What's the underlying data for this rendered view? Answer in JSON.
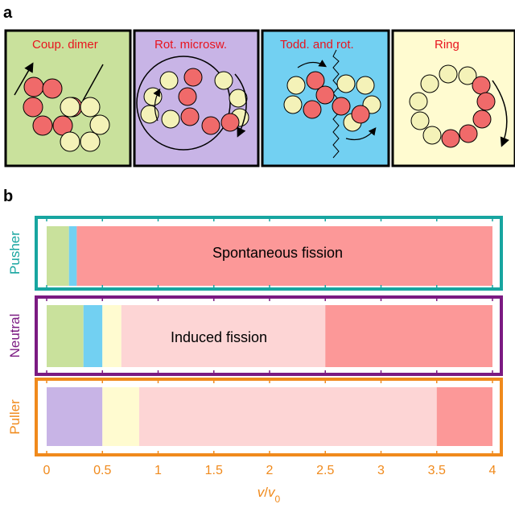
{
  "panel_a": {
    "letter": "a",
    "panels": [
      {
        "title": "Coup. dimer",
        "bg": "#c9e19c"
      },
      {
        "title": "Rot. microsw.",
        "bg": "#c8b4e6"
      },
      {
        "title": "Todd. and rot.",
        "bg": "#72d0f2"
      },
      {
        "title": "Ring",
        "bg": "#fffbd0"
      }
    ]
  },
  "panel_b": {
    "letter": "b",
    "rows": [
      {
        "label": "Pusher",
        "color": "#17a5a0",
        "region_text": "Spontaneous fission"
      },
      {
        "label": "Neutral",
        "color": "#7b1a82",
        "region_text": "Induced fission"
      },
      {
        "label": "Puller",
        "color": "#f08a1c",
        "region_text": ""
      }
    ]
  },
  "chart_data": {
    "type": "bar",
    "orientation": "horizontal-stacked",
    "xlim": [
      0,
      4
    ],
    "xticks": [
      "0",
      "0.5",
      "1",
      "1.5",
      "2",
      "2.5",
      "3",
      "3.5",
      "4"
    ],
    "xlabel_var": "v",
    "xlabel_sep": "/",
    "xlabel_base": "v",
    "xlabel_sub": "0",
    "series": [
      {
        "row": "Pusher",
        "segments": [
          {
            "from": 0,
            "to": 0.2,
            "color": "#c9e19c"
          },
          {
            "from": 0.2,
            "to": 0.27,
            "color": "#72d0f2"
          },
          {
            "from": 0.27,
            "to": 4,
            "color": "#fc9898"
          }
        ]
      },
      {
        "row": "Neutral",
        "segments": [
          {
            "from": 0,
            "to": 0.33,
            "color": "#c9e19c"
          },
          {
            "from": 0.33,
            "to": 0.5,
            "color": "#72d0f2"
          },
          {
            "from": 0.5,
            "to": 0.67,
            "color": "#fffbd0"
          },
          {
            "from": 0.67,
            "to": 2.5,
            "color": "#fdd5d5"
          },
          {
            "from": 2.5,
            "to": 4,
            "color": "#fc9898"
          }
        ]
      },
      {
        "row": "Puller",
        "segments": [
          {
            "from": 0,
            "to": 0.5,
            "color": "#c8b4e6"
          },
          {
            "from": 0.5,
            "to": 0.83,
            "color": "#fffbd0"
          },
          {
            "from": 0.83,
            "to": 3.5,
            "color": "#fdd5d5"
          },
          {
            "from": 3.5,
            "to": 4,
            "color": "#fc9898"
          }
        ]
      }
    ]
  }
}
